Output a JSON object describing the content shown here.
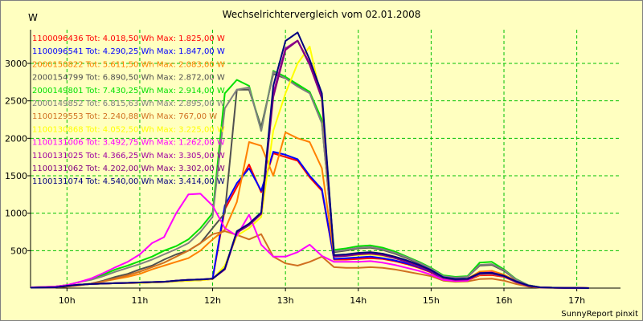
{
  "header": {
    "title": "Wechselrichtervergleich vom 02.01.2008",
    "unit": "W",
    "footer": "SunnyReport pinxit"
  },
  "chart_data": {
    "type": "line",
    "title": "Wechselrichtervergleich vom 02.01.2008",
    "ylabel": "W",
    "xlabel": "",
    "xlim": [
      9.5,
      17.6
    ],
    "ylim": [
      0,
      3450
    ],
    "x_ticks": [
      "10h",
      "11h",
      "12h",
      "13h",
      "14h",
      "15h",
      "16h",
      "17h"
    ],
    "y_ticks": [
      500,
      1000,
      1500,
      2000,
      2500,
      3000
    ],
    "grid": true,
    "legend_position": "top-left",
    "x": [
      9.5,
      9.833,
      10.0,
      10.167,
      10.333,
      10.5,
      10.667,
      10.833,
      11.0,
      11.167,
      11.333,
      11.5,
      11.667,
      11.833,
      12.0,
      12.167,
      12.333,
      12.5,
      12.667,
      12.833,
      13.0,
      13.167,
      13.333,
      13.5,
      13.667,
      13.833,
      14.0,
      14.167,
      14.333,
      14.5,
      14.667,
      14.833,
      15.0,
      15.167,
      15.333,
      15.5,
      15.667,
      15.833,
      16.0,
      16.167,
      16.333,
      16.5,
      16.667,
      16.833,
      17.0,
      17.167
    ],
    "series": [
      {
        "name": "1100096436 Tot: 4.018,50 Wh Max: 1.825,00 W",
        "color": "#ff0000",
        "values": [
          5,
          10,
          30,
          45,
          55,
          60,
          65,
          68,
          70,
          75,
          80,
          90,
          100,
          105,
          120,
          1050,
          1350,
          1650,
          1280,
          1800,
          1750,
          1700,
          1480,
          1300,
          380,
          380,
          390,
          400,
          390,
          360,
          320,
          270,
          210,
          120,
          100,
          105,
          170,
          175,
          150,
          80,
          30,
          10,
          5,
          3,
          2,
          0
        ]
      },
      {
        "name": "1100096541 Tot: 4.290,25 Wh Max: 1.847,00 W",
        "color": "#0000ff",
        "values": [
          5,
          10,
          30,
          45,
          55,
          60,
          65,
          70,
          75,
          80,
          85,
          100,
          110,
          115,
          125,
          1100,
          1400,
          1600,
          1300,
          1820,
          1780,
          1720,
          1500,
          1320,
          390,
          400,
          410,
          420,
          400,
          370,
          330,
          280,
          220,
          125,
          110,
          115,
          190,
          195,
          160,
          85,
          30,
          10,
          5,
          3,
          2,
          0
        ]
      },
      {
        "name": "2000150822 Tot: 5.611,50 Wh Max: 2.083,00 W",
        "color": "#ff8000",
        "values": [
          5,
          10,
          20,
          40,
          60,
          90,
          120,
          150,
          190,
          250,
          300,
          350,
          400,
          500,
          650,
          780,
          1150,
          1950,
          1900,
          1500,
          2080,
          2000,
          1950,
          1600,
          430,
          440,
          460,
          480,
          460,
          420,
          370,
          310,
          240,
          140,
          120,
          125,
          220,
          230,
          180,
          95,
          35,
          10,
          5,
          3,
          2,
          0
        ]
      },
      {
        "name": "2000154799 Tot: 6.890,50 Wh Max: 2.872,00 W",
        "color": "#505050",
        "values": [
          5,
          10,
          20,
          40,
          60,
          100,
          150,
          190,
          250,
          300,
          380,
          450,
          500,
          600,
          800,
          1000,
          2650,
          2650,
          2150,
          2860,
          2800,
          2700,
          2620,
          2200,
          480,
          500,
          530,
          540,
          510,
          460,
          400,
          330,
          260,
          160,
          140,
          150,
          300,
          310,
          230,
          110,
          40,
          10,
          5,
          3,
          2,
          0
        ]
      },
      {
        "name": "2000149801 Tot: 7.430,25 Wh Max: 2.914,00 W",
        "color": "#00e000",
        "values": [
          10,
          20,
          40,
          80,
          120,
          180,
          250,
          300,
          360,
          420,
          500,
          560,
          650,
          800,
          1000,
          2600,
          2780,
          2700,
          2100,
          2900,
          2820,
          2720,
          2620,
          2250,
          510,
          530,
          560,
          570,
          540,
          490,
          420,
          350,
          270,
          170,
          150,
          160,
          340,
          350,
          250,
          120,
          40,
          10,
          5,
          3,
          2,
          0
        ]
      },
      {
        "name": "2000149852 Tot: 6.815,63 Wh Max: 2.895,00 W",
        "color": "#808080",
        "values": [
          10,
          20,
          40,
          80,
          110,
          160,
          220,
          270,
          320,
          380,
          450,
          520,
          600,
          750,
          950,
          2400,
          2650,
          2680,
          2100,
          2890,
          2800,
          2690,
          2600,
          2200,
          490,
          510,
          540,
          550,
          520,
          470,
          410,
          340,
          260,
          160,
          140,
          150,
          310,
          320,
          240,
          115,
          40,
          10,
          5,
          3,
          2,
          0
        ]
      },
      {
        "name": "1100129553 Tot: 2.240,88 Wh Max: 767,00 W",
        "color": "#d07020",
        "values": [
          5,
          10,
          20,
          35,
          60,
          90,
          130,
          170,
          220,
          280,
          340,
          420,
          500,
          600,
          720,
          760,
          710,
          650,
          720,
          420,
          330,
          300,
          350,
          420,
          280,
          270,
          270,
          280,
          270,
          250,
          220,
          190,
          160,
          100,
          85,
          90,
          120,
          125,
          100,
          55,
          20,
          5,
          3,
          2,
          1,
          0
        ]
      },
      {
        "name": "1100130868 Tot: 4.052,50 Wh Max: 3.225,00 W",
        "color": "#ffff00",
        "values": [
          5,
          10,
          30,
          45,
          55,
          60,
          65,
          68,
          70,
          75,
          80,
          90,
          100,
          105,
          120,
          300,
          700,
          800,
          950,
          2100,
          2600,
          3000,
          3225,
          2500,
          420,
          430,
          440,
          450,
          430,
          400,
          350,
          290,
          230,
          130,
          110,
          115,
          180,
          185,
          155,
          80,
          30,
          10,
          5,
          3,
          2,
          0
        ]
      },
      {
        "name": "1100131006 Tot: 3.492,75 Wh Max: 1.262,00 W",
        "color": "#ff00ff",
        "values": [
          10,
          20,
          40,
          80,
          130,
          200,
          280,
          350,
          450,
          600,
          680,
          1000,
          1250,
          1260,
          1100,
          800,
          700,
          980,
          580,
          420,
          420,
          480,
          580,
          430,
          350,
          350,
          350,
          360,
          340,
          310,
          270,
          230,
          180,
          110,
          95,
          100,
          200,
          210,
          160,
          80,
          30,
          10,
          5,
          3,
          2,
          0
        ]
      },
      {
        "name": "1100131025 Tot: 4.366,25 Wh Max: 3.305,00 W",
        "color": "#a000a0",
        "values": [
          5,
          10,
          30,
          45,
          55,
          60,
          65,
          70,
          75,
          80,
          85,
          100,
          110,
          115,
          125,
          250,
          750,
          850,
          1000,
          2600,
          3200,
          3305,
          3000,
          2550,
          430,
          440,
          460,
          470,
          450,
          410,
          360,
          300,
          230,
          140,
          115,
          120,
          190,
          195,
          160,
          85,
          30,
          10,
          5,
          3,
          2,
          0
        ]
      },
      {
        "name": "1100131062 Tot: 4.202,00 Wh Max: 3.302,00 W",
        "color": "#800080",
        "values": [
          5,
          10,
          30,
          45,
          55,
          60,
          65,
          70,
          75,
          80,
          85,
          100,
          110,
          115,
          125,
          250,
          740,
          840,
          990,
          2550,
          3180,
          3302,
          2980,
          2530,
          420,
          430,
          450,
          460,
          440,
          400,
          350,
          290,
          225,
          135,
          110,
          115,
          185,
          190,
          155,
          80,
          30,
          10,
          5,
          3,
          2,
          0
        ]
      },
      {
        "name": "1100131074 Tot: 4.540,00 Wh Max: 3.414,00 W",
        "color": "#000080",
        "values": [
          5,
          10,
          30,
          45,
          55,
          60,
          65,
          70,
          75,
          80,
          85,
          100,
          110,
          115,
          125,
          260,
          760,
          860,
          1010,
          2700,
          3300,
          3414,
          3050,
          2600,
          440,
          450,
          470,
          480,
          460,
          420,
          370,
          310,
          240,
          145,
          120,
          125,
          200,
          205,
          165,
          90,
          35,
          10,
          5,
          3,
          2,
          0
        ]
      }
    ]
  },
  "colors": {
    "background": "#ffffc0",
    "grid": "#00c000",
    "axis": "#000000"
  }
}
